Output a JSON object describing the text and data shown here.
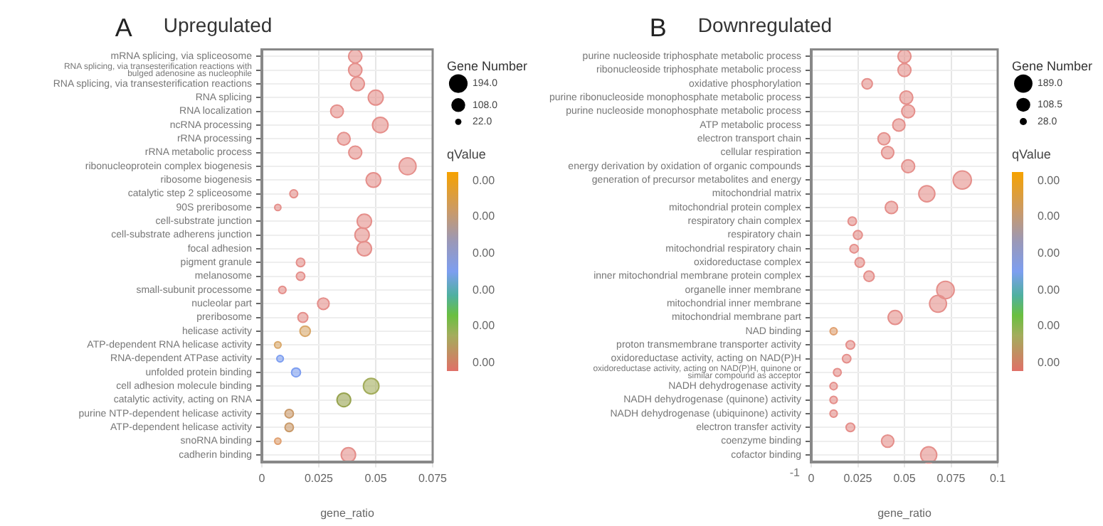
{
  "chart_data": [
    {
      "type": "bubble",
      "title": "Upregulated",
      "xlabel": "gene_ratio",
      "legend_title": "Gene Number",
      "clabel": "qValue",
      "orientation": "horizontal",
      "grid": true,
      "categories": [
        "mRNA splicing, via spliceosome",
        "RNA splicing, via transesterification reactions with bulged adenosine as nucleophile",
        "RNA splicing, via transesterification reactions",
        "RNA splicing",
        "RNA localization",
        "ncRNA processing",
        "rRNA processing",
        "rRNA metabolic process",
        "ribonucleoprotein complex biogenesis",
        "ribosome biogenesis",
        "catalytic step 2 spliceosome",
        "90S preribosome",
        "cell-substrate junction",
        "cell-substrate adherens junction",
        "focal adhesion",
        "pigment granule",
        "melanosome",
        "small-subunit processome",
        "nucleolar part",
        "preribosome",
        "helicase activity",
        "ATP-dependent RNA helicase activity",
        "RNA-dependent ATPase activity",
        "unfolded protein binding",
        "cell adhesion molecule binding",
        "catalytic activity, acting on RNA",
        "purine NTP-dependent helicase activity",
        "ATP-dependent helicase activity",
        "snoRNA binding",
        "cadherin binding"
      ],
      "values": [
        0.041,
        0.041,
        0.042,
        0.05,
        0.033,
        0.052,
        0.036,
        0.041,
        0.064,
        0.049,
        0.014,
        0.007,
        0.045,
        0.044,
        0.045,
        0.017,
        0.017,
        0.009,
        0.027,
        0.018,
        0.019,
        0.007,
        0.008,
        0.015,
        0.048,
        0.036,
        0.012,
        0.012,
        0.007,
        0.038
      ],
      "sizes": [
        100,
        100,
        105,
        125,
        90,
        135,
        90,
        95,
        160,
        120,
        35,
        22,
        115,
        115,
        115,
        40,
        40,
        30,
        75,
        55,
        60,
        24,
        24,
        45,
        135,
        105,
        40,
        40,
        22,
        115
      ],
      "colors": [
        "#e58f8b",
        "#e58f8b",
        "#e58f8b",
        "#e58f8b",
        "#e58f8b",
        "#e58f8b",
        "#e58f8b",
        "#e58f8b",
        "#e58f8b",
        "#e58f8b",
        "#e58f8b",
        "#e58f8b",
        "#e58f8b",
        "#e58f8b",
        "#e58f8b",
        "#e58f8b",
        "#e58f8b",
        "#e58f8b",
        "#e58f8b",
        "#e58f8b",
        "#d9a86a",
        "#d9a86a",
        "#7d9ef0",
        "#7d9ef0",
        "#a3ad5c",
        "#98a450",
        "#c99a6a",
        "#c99a6a",
        "#e0a070",
        "#e58f8b"
      ],
      "size_legend": [
        {
          "value": 194,
          "label": "194.0"
        },
        {
          "value": 108,
          "label": "108.0"
        },
        {
          "value": 22,
          "label": "22.0"
        }
      ],
      "xlim": [
        0,
        0.075
      ],
      "xticks": [
        0,
        0.025,
        0.05,
        0.075
      ],
      "annotations": [
        "A",
        "0.00",
        "0.00",
        "0.00",
        "0.00",
        "0.00",
        "0.00"
      ]
    },
    {
      "type": "bubble",
      "title": "Downregulated",
      "xlabel": "gene_ratio",
      "legend_title": "Gene Number",
      "clabel": "qValue",
      "orientation": "horizontal",
      "grid": true,
      "categories": [
        "purine nucleoside triphosphate metabolic process",
        "ribonucleoside triphosphate metabolic process",
        "oxidative phosphorylation",
        "purine ribonucleoside monophosphate metabolic process",
        "purine nucleoside monophosphate metabolic process",
        "ATP metabolic process",
        "electron transport chain",
        "cellular respiration",
        "energy derivation by oxidation of organic compounds",
        "generation of precursor metabolites and energy",
        "mitochondrial matrix",
        "mitochondrial protein complex",
        "respiratory chain complex",
        "respiratory chain",
        "mitochondrial respiratory chain",
        "oxidoreductase complex",
        "inner mitochondrial membrane protein complex",
        "organelle inner membrane",
        "mitochondrial inner membrane",
        "mitochondrial membrane part",
        "NAD binding",
        "proton transmembrane transporter activity",
        "oxidoreductase activity, acting on NAD(P)H",
        "oxidoreductase activity, acting on NAD(P)H, quinone or similar compound as acceptor",
        "NADH dehydrogenase activity",
        "NADH dehydrogenase (quinone) activity",
        "NADH dehydrogenase (ubiquinone) activity",
        "electron transfer activity",
        "coenzyme binding",
        "cofactor binding"
      ],
      "values": [
        0.05,
        0.05,
        0.03,
        0.051,
        0.052,
        0.047,
        0.039,
        0.041,
        0.052,
        0.081,
        0.062,
        0.043,
        0.022,
        0.025,
        0.023,
        0.026,
        0.031,
        0.072,
        0.068,
        0.045,
        0.012,
        0.021,
        0.019,
        0.014,
        0.012,
        0.012,
        0.012,
        0.021,
        0.041,
        0.063
      ],
      "sizes": [
        95,
        95,
        60,
        95,
        95,
        85,
        80,
        85,
        95,
        185,
        145,
        85,
        40,
        45,
        40,
        50,
        60,
        170,
        160,
        110,
        28,
        42,
        40,
        34,
        30,
        30,
        30,
        42,
        85,
        145
      ],
      "colors": [
        "#e58f8b",
        "#e58f8b",
        "#e58f8b",
        "#e58f8b",
        "#e58f8b",
        "#e58f8b",
        "#e58f8b",
        "#e58f8b",
        "#e58f8b",
        "#e58f8b",
        "#e58f8b",
        "#e58f8b",
        "#e58f8b",
        "#e58f8b",
        "#e58f8b",
        "#e58f8b",
        "#e58f8b",
        "#e58f8b",
        "#e58f8b",
        "#e58f8b",
        "#e0a070",
        "#e58f8b",
        "#e58f8b",
        "#e58f8b",
        "#e58f8b",
        "#e58f8b",
        "#e58f8b",
        "#e58f8b",
        "#e58f8b",
        "#e58f8b"
      ],
      "size_legend": [
        {
          "value": 189,
          "label": "189.0"
        },
        {
          "value": 108.5,
          "label": "108.5"
        },
        {
          "value": 28,
          "label": "28.0"
        }
      ],
      "xlim": [
        0,
        0.1
      ],
      "xticks": [
        0,
        0.025,
        0.05,
        0.075,
        0.1
      ],
      "annotations": [
        "B",
        "0.00",
        "0.00",
        "0.00",
        "0.00",
        "0.00",
        "0.00",
        "-1"
      ]
    }
  ]
}
